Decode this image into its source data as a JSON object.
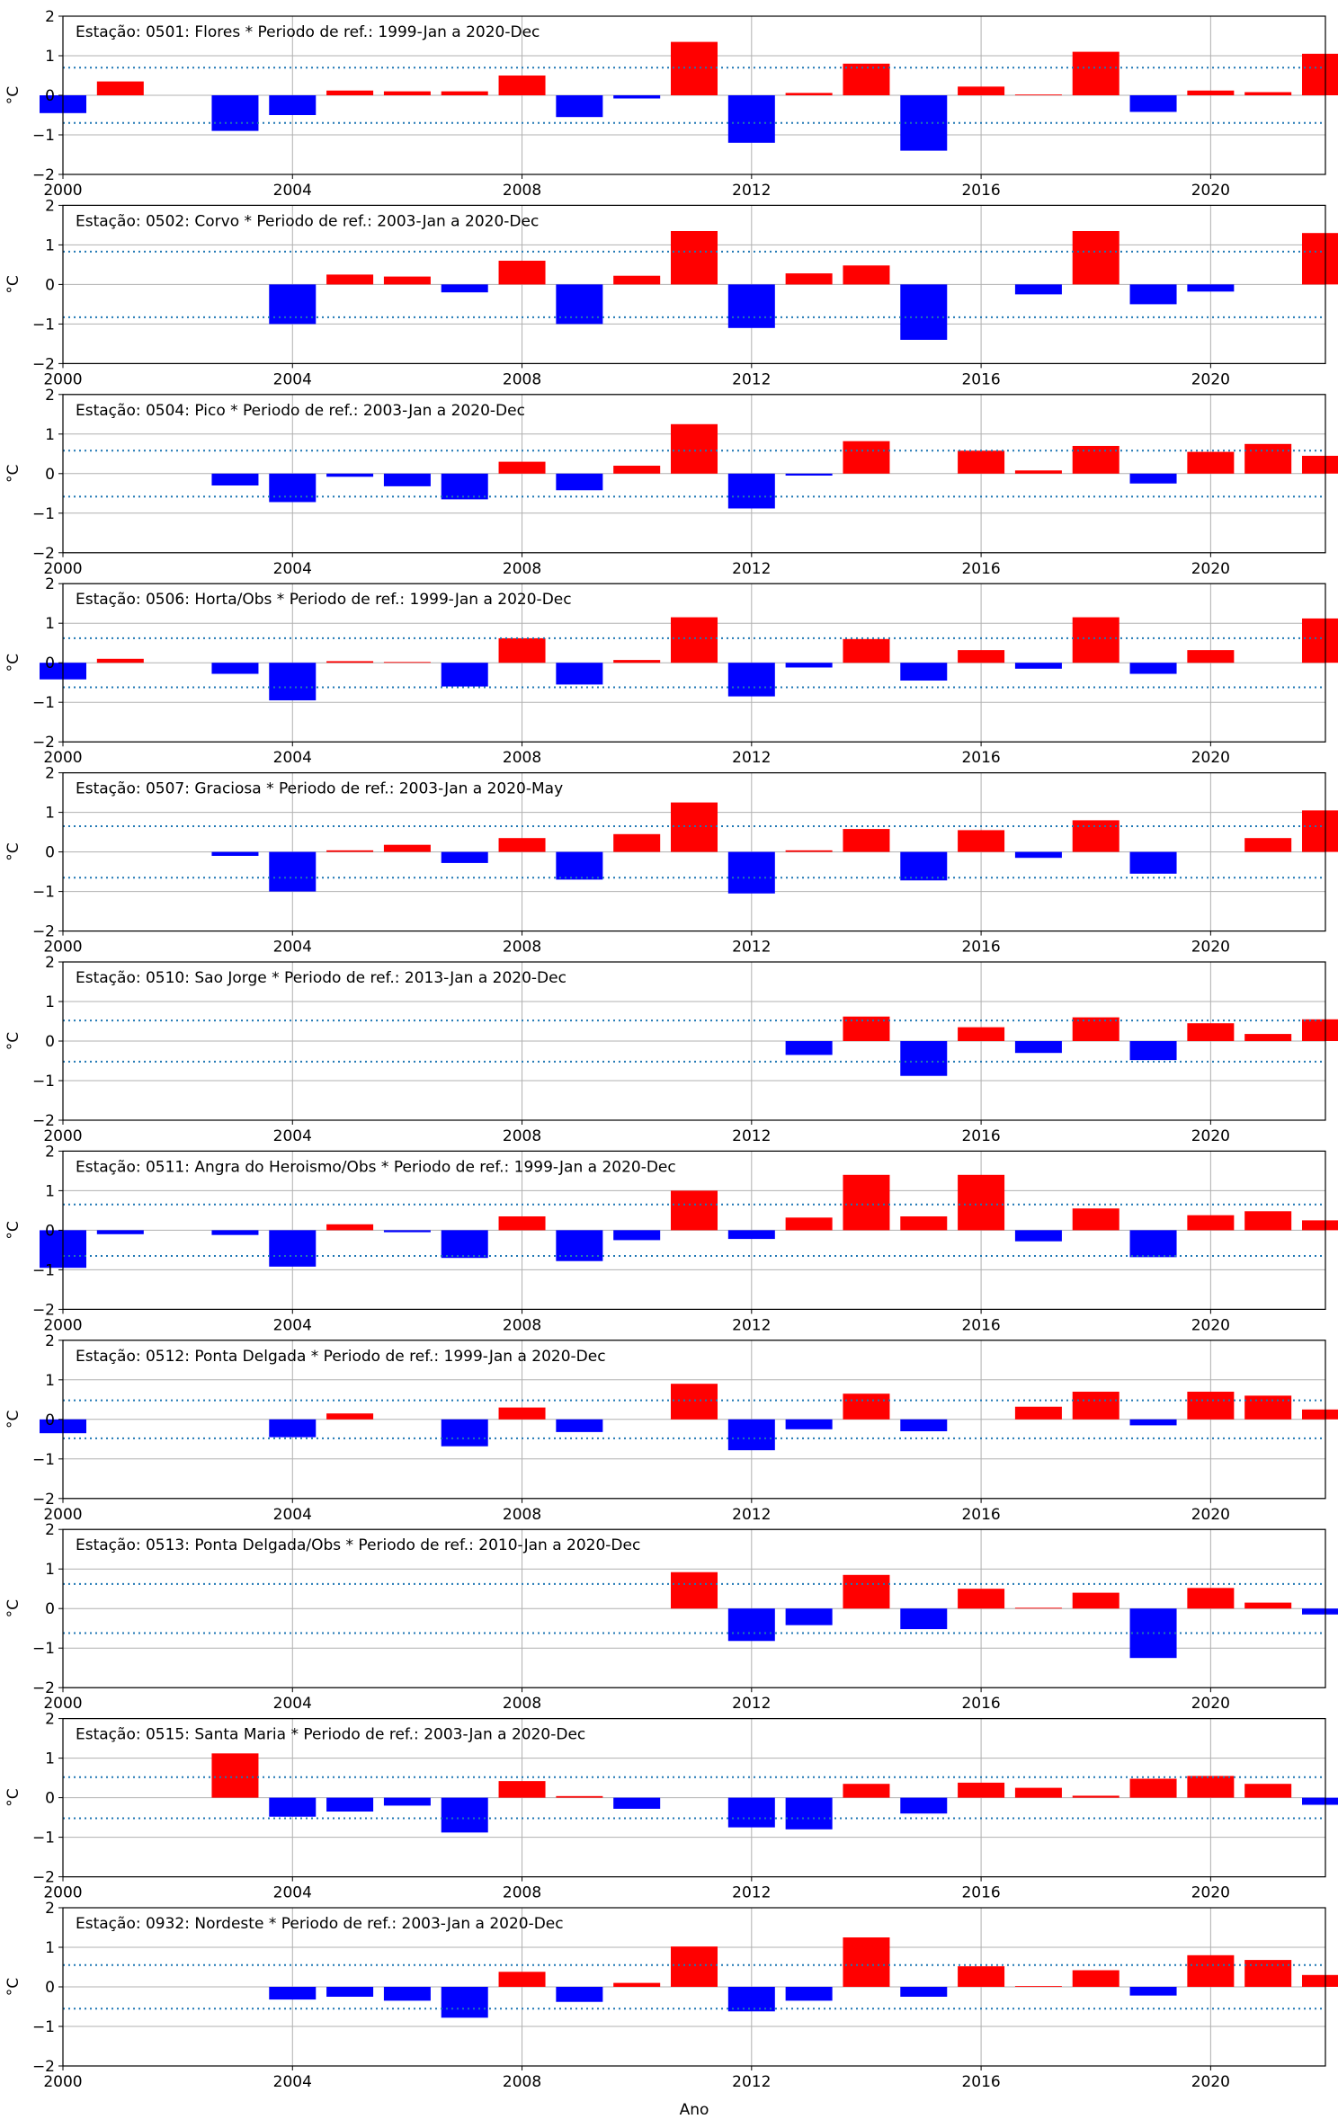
{
  "xlabel": "Ano",
  "ylabel": "°C",
  "x_ticks": [
    2000,
    2004,
    2008,
    2012,
    2016,
    2020
  ],
  "y_ticks": [
    -2,
    -1,
    0,
    1,
    2
  ],
  "colors": {
    "positive": "#ff0000",
    "negative": "#0000ff",
    "threshold": "#1f77b4",
    "grid": "#b0b0b0"
  },
  "chart_data": [
    {
      "type": "bar",
      "title": "Estação: 0501: Flores * Periodo de ref.: 1999-Jan a 2020-Dec",
      "xlim": [
        2000,
        2022
      ],
      "ylim": [
        -2,
        2
      ],
      "threshold": 0.7,
      "x": [
        2000,
        2001,
        2003,
        2004,
        2005,
        2006,
        2007,
        2008,
        2009,
        2010,
        2011,
        2012,
        2013,
        2014,
        2015,
        2016,
        2017,
        2018,
        2019,
        2020,
        2021,
        2022
      ],
      "values": [
        -0.45,
        0.35,
        -0.9,
        -0.5,
        0.12,
        0.1,
        0.1,
        0.5,
        -0.55,
        -0.08,
        1.35,
        -1.2,
        0.06,
        0.8,
        -1.4,
        0.22,
        0.02,
        1.1,
        -0.42,
        0.12,
        0.08,
        1.05
      ]
    },
    {
      "type": "bar",
      "title": "Estação: 0502: Corvo * Periodo de ref.: 2003-Jan a 2020-Dec",
      "xlim": [
        2000,
        2022
      ],
      "ylim": [
        -2,
        2
      ],
      "threshold": 0.83,
      "x": [
        2004,
        2005,
        2006,
        2007,
        2008,
        2009,
        2010,
        2011,
        2012,
        2013,
        2014,
        2015,
        2017,
        2018,
        2019,
        2020,
        2022
      ],
      "values": [
        -1.0,
        0.25,
        0.2,
        -0.2,
        0.6,
        -1.0,
        0.22,
        1.35,
        -1.1,
        0.28,
        0.48,
        -1.4,
        -0.25,
        1.35,
        -0.5,
        -0.18,
        1.3
      ]
    },
    {
      "type": "bar",
      "title": "Estação: 0504: Pico * Periodo de ref.: 2003-Jan a 2020-Dec",
      "xlim": [
        2000,
        2022
      ],
      "ylim": [
        -2,
        2
      ],
      "threshold": 0.58,
      "x": [
        2003,
        2004,
        2005,
        2006,
        2007,
        2008,
        2009,
        2010,
        2011,
        2012,
        2013,
        2014,
        2016,
        2017,
        2018,
        2019,
        2020,
        2021,
        2022
      ],
      "values": [
        -0.3,
        -0.72,
        -0.08,
        -0.32,
        -0.65,
        0.3,
        -0.42,
        0.2,
        1.25,
        -0.88,
        -0.05,
        0.82,
        0.58,
        0.08,
        0.7,
        -0.25,
        0.55,
        0.75,
        0.45
      ]
    },
    {
      "type": "bar",
      "title": "Estação: 0506: Horta/Obs * Periodo de ref.: 1999-Jan a 2020-Dec",
      "xlim": [
        2000,
        2022
      ],
      "ylim": [
        -2,
        2
      ],
      "threshold": 0.62,
      "x": [
        2000,
        2001,
        2003,
        2004,
        2005,
        2006,
        2007,
        2008,
        2009,
        2010,
        2011,
        2012,
        2013,
        2014,
        2015,
        2016,
        2017,
        2018,
        2019,
        2020,
        2022
      ],
      "values": [
        -0.42,
        0.1,
        -0.28,
        -0.95,
        0.04,
        0.02,
        -0.6,
        0.62,
        -0.55,
        0.07,
        1.15,
        -0.85,
        -0.12,
        0.6,
        -0.45,
        0.32,
        -0.15,
        1.15,
        -0.28,
        0.32,
        1.12
      ]
    },
    {
      "type": "bar",
      "title": "Estação: 0507: Graciosa * Periodo de ref.: 2003-Jan a 2020-May",
      "xlim": [
        2000,
        2022
      ],
      "ylim": [
        -2,
        2
      ],
      "threshold": 0.65,
      "x": [
        2003,
        2004,
        2005,
        2006,
        2007,
        2008,
        2009,
        2010,
        2011,
        2012,
        2013,
        2014,
        2015,
        2016,
        2017,
        2018,
        2019,
        2021,
        2022
      ],
      "values": [
        -0.1,
        -1.0,
        0.04,
        0.18,
        -0.28,
        0.35,
        -0.7,
        0.45,
        1.25,
        -1.05,
        0.04,
        0.58,
        -0.72,
        0.55,
        -0.15,
        0.8,
        -0.55,
        0.35,
        1.05
      ]
    },
    {
      "type": "bar",
      "title": "Estação: 0510: Sao Jorge * Periodo de ref.: 2013-Jan a 2020-Dec",
      "xlim": [
        2000,
        2022
      ],
      "ylim": [
        -2,
        2
      ],
      "threshold": 0.52,
      "x": [
        2013,
        2014,
        2015,
        2016,
        2017,
        2018,
        2019,
        2020,
        2021,
        2022
      ],
      "values": [
        -0.35,
        0.62,
        -0.88,
        0.35,
        -0.3,
        0.6,
        -0.48,
        0.45,
        0.18,
        0.55
      ]
    },
    {
      "type": "bar",
      "title": "Estação: 0511: Angra do Heroismo/Obs * Periodo de ref.: 1999-Jan a 2020-Dec",
      "xlim": [
        2000,
        2022
      ],
      "ylim": [
        -2,
        2
      ],
      "threshold": 0.65,
      "x": [
        2000,
        2001,
        2003,
        2004,
        2005,
        2006,
        2007,
        2008,
        2009,
        2010,
        2011,
        2012,
        2013,
        2014,
        2015,
        2016,
        2017,
        2018,
        2019,
        2020,
        2021,
        2022
      ],
      "values": [
        -0.95,
        -0.1,
        -0.12,
        -0.92,
        0.15,
        -0.05,
        -0.7,
        0.35,
        -0.78,
        -0.25,
        1.0,
        -0.22,
        0.32,
        1.4,
        0.35,
        1.4,
        -0.28,
        0.55,
        -0.68,
        0.38,
        0.48,
        0.25
      ]
    },
    {
      "type": "bar",
      "title": "Estação: 0512: Ponta Delgada * Periodo de ref.: 1999-Jan a 2020-Dec",
      "xlim": [
        2000,
        2022
      ],
      "ylim": [
        -2,
        2
      ],
      "threshold": 0.48,
      "x": [
        2000,
        2004,
        2005,
        2007,
        2008,
        2009,
        2011,
        2012,
        2013,
        2014,
        2015,
        2017,
        2018,
        2019,
        2020,
        2021,
        2022
      ],
      "values": [
        -0.35,
        -0.45,
        0.15,
        -0.68,
        0.3,
        -0.32,
        0.9,
        -0.78,
        -0.25,
        0.65,
        -0.3,
        0.32,
        0.7,
        -0.15,
        0.7,
        0.6,
        0.25
      ]
    },
    {
      "type": "bar",
      "title": "Estação: 0513: Ponta Delgada/Obs * Periodo de ref.: 2010-Jan a 2020-Dec",
      "xlim": [
        2000,
        2022
      ],
      "ylim": [
        -2,
        2
      ],
      "threshold": 0.62,
      "x": [
        2011,
        2012,
        2013,
        2014,
        2015,
        2016,
        2017,
        2018,
        2019,
        2020,
        2021,
        2022
      ],
      "values": [
        0.92,
        -0.82,
        -0.42,
        0.85,
        -0.52,
        0.5,
        0.02,
        0.4,
        -1.25,
        0.52,
        0.15,
        -0.15
      ]
    },
    {
      "type": "bar",
      "title": "Estação: 0515: Santa Maria * Periodo de ref.: 2003-Jan a 2020-Dec",
      "xlim": [
        2000,
        2022
      ],
      "ylim": [
        -2,
        2
      ],
      "threshold": 0.52,
      "x": [
        2003,
        2004,
        2005,
        2006,
        2007,
        2008,
        2009,
        2010,
        2012,
        2013,
        2014,
        2015,
        2016,
        2017,
        2018,
        2019,
        2020,
        2021,
        2022
      ],
      "values": [
        1.12,
        -0.48,
        -0.35,
        -0.2,
        -0.88,
        0.42,
        0.04,
        -0.28,
        -0.75,
        -0.8,
        0.35,
        -0.4,
        0.38,
        0.25,
        0.05,
        0.48,
        0.55,
        0.35,
        -0.18
      ]
    },
    {
      "type": "bar",
      "title": "Estação: 0932: Nordeste * Periodo de ref.: 2003-Jan a 2020-Dec",
      "xlim": [
        2000,
        2022
      ],
      "ylim": [
        -2,
        2
      ],
      "threshold": 0.55,
      "x": [
        2004,
        2005,
        2006,
        2007,
        2008,
        2009,
        2010,
        2011,
        2012,
        2013,
        2014,
        2015,
        2016,
        2017,
        2018,
        2019,
        2020,
        2021,
        2022
      ],
      "values": [
        -0.32,
        -0.25,
        -0.35,
        -0.78,
        0.38,
        -0.38,
        0.1,
        1.02,
        -0.62,
        -0.35,
        1.25,
        -0.25,
        0.52,
        0.02,
        0.42,
        -0.22,
        0.8,
        0.68,
        0.3
      ]
    }
  ]
}
